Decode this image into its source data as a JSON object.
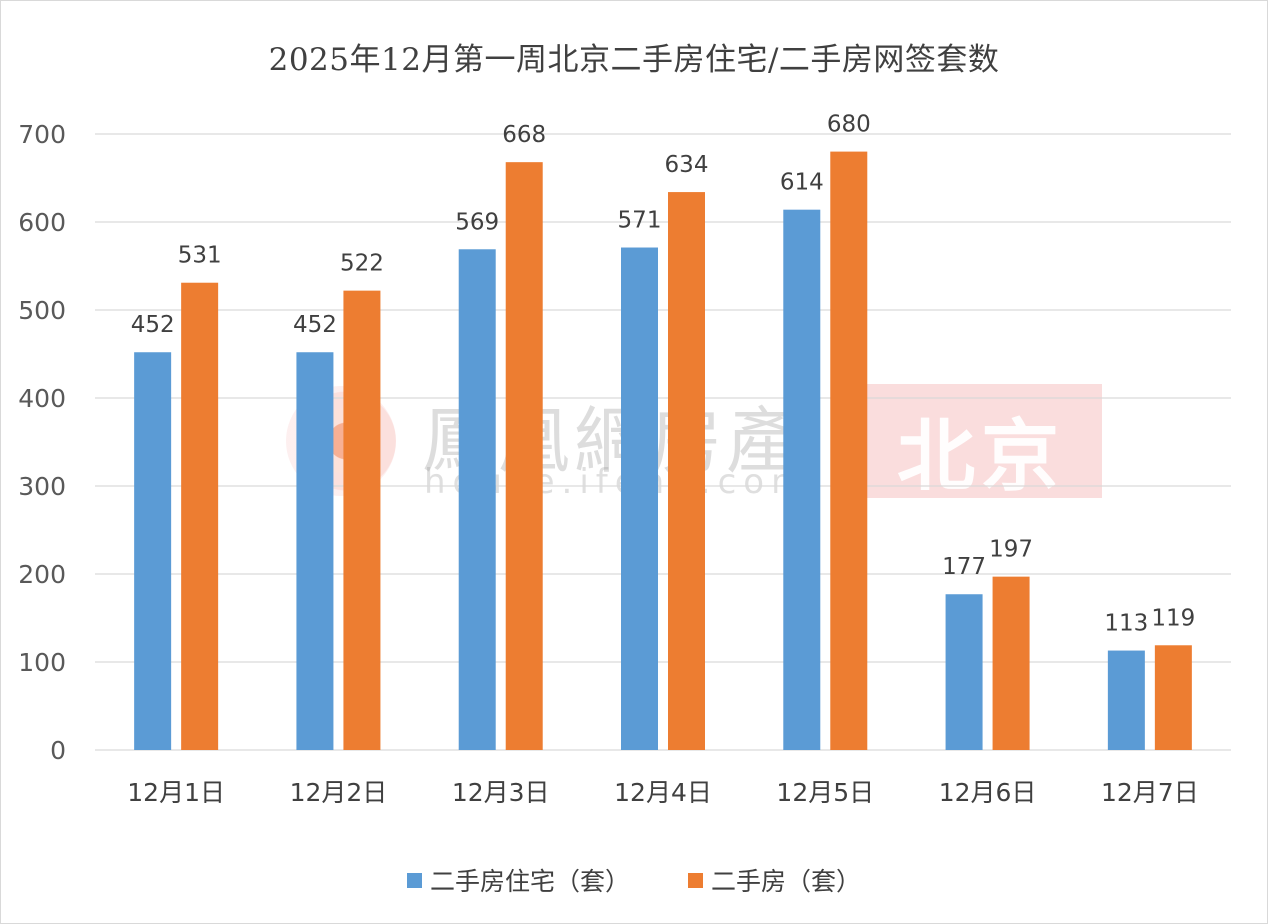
{
  "chart_data": {
    "type": "bar",
    "title": "2025年12月第一周北京二手房住宅/二手房网签套数",
    "categories": [
      "12月1日",
      "12月2日",
      "12月3日",
      "12月4日",
      "12月5日",
      "12月6日",
      "12月7日"
    ],
    "series": [
      {
        "name": "二手房住宅（套）",
        "color": "#5b9bd5",
        "values": [
          452,
          452,
          569,
          571,
          614,
          177,
          113
        ]
      },
      {
        "name": "二手房（套）",
        "color": "#ed7d31",
        "values": [
          531,
          522,
          668,
          634,
          680,
          197,
          119
        ]
      }
    ],
    "ylim": [
      0,
      700
    ],
    "yticks": [
      0,
      100,
      200,
      300,
      400,
      500,
      600,
      700
    ],
    "grid": true,
    "legend_position": "bottom",
    "data_labels": true
  },
  "watermark": {
    "brand_cn": "鳳凰網房產",
    "url": "house.ifeng.com",
    "city": "北京"
  }
}
